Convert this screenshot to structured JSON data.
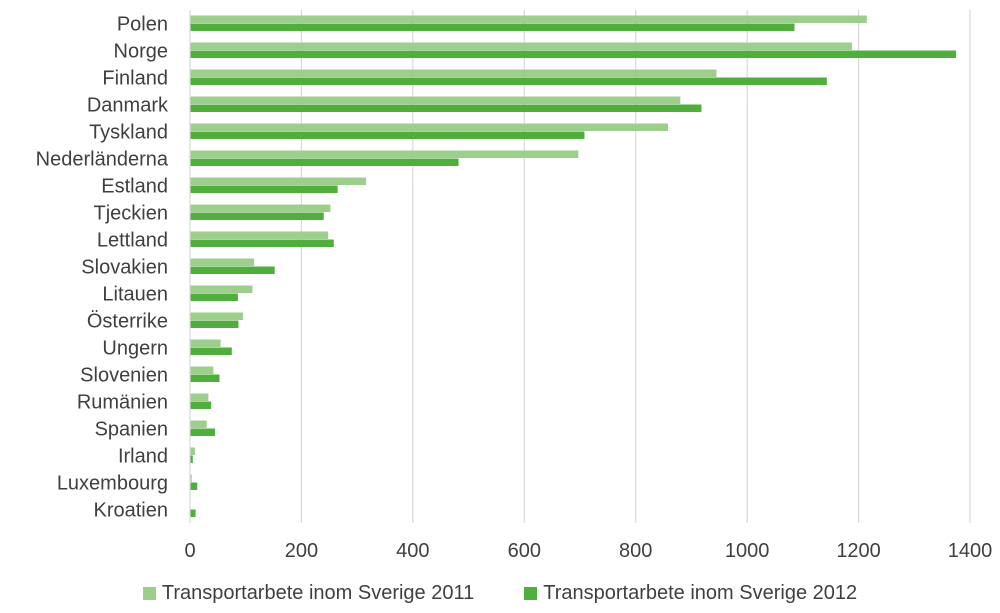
{
  "chart_data": {
    "type": "bar",
    "orientation": "horizontal",
    "categories": [
      "Polen",
      "Norge",
      "Finland",
      "Danmark",
      "Tyskland",
      "Nederländerna",
      "Estland",
      "Tjeckien",
      "Lettland",
      "Slovakien",
      "Litauen",
      "Österrike",
      "Ungern",
      "Slovenien",
      "Rumänien",
      "Spanien",
      "Irland",
      "Luxembourg",
      "Kroatien"
    ],
    "series": [
      {
        "name": "Transportarbete inom Sverige 2011",
        "color": "#9ccf8c",
        "values": [
          1215,
          1188,
          945,
          880,
          858,
          697,
          316,
          252,
          248,
          115,
          112,
          95,
          55,
          42,
          33,
          30,
          9,
          3,
          0
        ]
      },
      {
        "name": "Transportarbete inom Sverige 2012",
        "color": "#4fae3c",
        "values": [
          1085,
          1375,
          1143,
          918,
          708,
          482,
          265,
          240,
          258,
          152,
          86,
          87,
          75,
          53,
          38,
          45,
          5,
          13,
          10
        ]
      }
    ],
    "xlim": [
      0,
      1400
    ],
    "xticks": [
      "0",
      "200",
      "400",
      "600",
      "800",
      "1000",
      "1200",
      "1400"
    ],
    "grid": true,
    "legend_position": "bottom"
  }
}
